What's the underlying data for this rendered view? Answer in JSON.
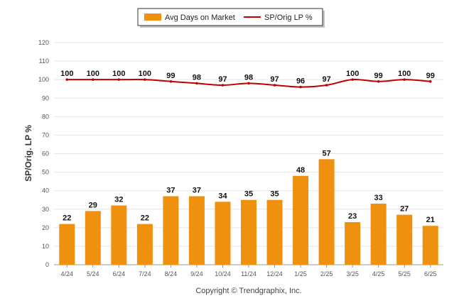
{
  "colors": {
    "bar": "#F0900F",
    "line": "#C00000",
    "grid": "#E4E4E4",
    "axis": "#999999"
  },
  "copyright": "Copyright © Trendgraphix, Inc.",
  "chart_data": {
    "type": "bar",
    "categories": [
      "4/24",
      "5/24",
      "6/24",
      "7/24",
      "8/24",
      "9/24",
      "10/24",
      "11/24",
      "12/24",
      "1/25",
      "2/25",
      "3/25",
      "4/25",
      "5/25",
      "6/25"
    ],
    "series": [
      {
        "name": "Avg Days on Market",
        "type": "bar",
        "values": [
          22,
          29,
          32,
          22,
          37,
          37,
          34,
          35,
          35,
          48,
          57,
          23,
          33,
          27,
          21
        ]
      },
      {
        "name": "SP/Orig LP %",
        "type": "line",
        "values": [
          100,
          100,
          100,
          100,
          99,
          98,
          97,
          98,
          97,
          96,
          97,
          100,
          99,
          100,
          99
        ]
      }
    ],
    "ylabel": "SP/Orig. LP %",
    "ylim": [
      0,
      120
    ],
    "yticks": [
      0,
      10,
      20,
      30,
      40,
      50,
      60,
      70,
      80,
      90,
      100,
      110,
      120
    ],
    "grid": true,
    "legend_position": "top-center"
  }
}
